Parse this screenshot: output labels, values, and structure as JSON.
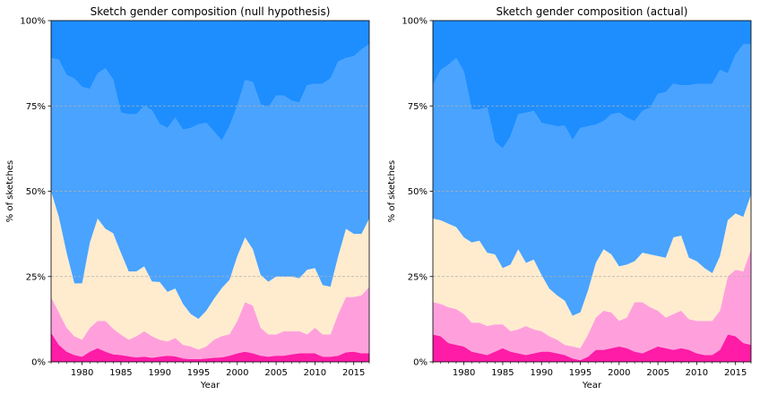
{
  "chart_data": [
    {
      "type": "area",
      "stacked": true,
      "normalized": true,
      "title": "Sketch gender composition (null hypothesis)",
      "xlabel": "Year",
      "ylabel": "% of sketches",
      "xlim": [
        1976,
        2017
      ],
      "ylim": [
        0,
        100
      ],
      "xticks": [
        "1980",
        "1985",
        "1990",
        "1995",
        "2000",
        "2005",
        "2010",
        "2015"
      ],
      "yticks": [
        "0%",
        "25%",
        "50%",
        "75%",
        "100%"
      ],
      "grid": "horizontal dashed at 25% steps",
      "x": [
        1976,
        1977,
        1978,
        1979,
        1980,
        1981,
        1982,
        1983,
        1984,
        1985,
        1986,
        1987,
        1988,
        1989,
        1990,
        1991,
        1992,
        1993,
        1994,
        1995,
        1996,
        1997,
        1998,
        1999,
        2000,
        2001,
        2002,
        2003,
        2004,
        2005,
        2006,
        2007,
        2008,
        2009,
        2010,
        2011,
        2012,
        2013,
        2014,
        2015,
        2016,
        2017
      ],
      "series": [
        {
          "color": "#ff1ca6",
          "values": [
            8.5,
            5,
            3,
            2,
            1.5,
            3,
            4,
            3,
            2.2,
            2,
            1.6,
            1.3,
            1.5,
            1.2,
            1.5,
            1.8,
            1.6,
            1,
            0.8,
            0.8,
            1,
            1.2,
            1.3,
            1.8,
            2.5,
            3,
            2.5,
            1.8,
            1.5,
            1.8,
            1.8,
            2.2,
            2.5,
            2.5,
            2.5,
            1.5,
            1.5,
            1.8,
            2.8,
            3,
            2.5,
            2.5
          ]
        },
        {
          "color": "#ffa0dc",
          "values": [
            10.5,
            9.5,
            7,
            5.5,
            5,
            7,
            8,
            9,
            7.5,
            6,
            4.9,
            6.2,
            7.5,
            6.3,
            5,
            4.2,
            5.4,
            4,
            3.7,
            2.8,
            3.5,
            5.3,
            6.2,
            6.3,
            9.5,
            14.5,
            14,
            8.2,
            6.5,
            6.2,
            7.2,
            6.8,
            6.5,
            5.5,
            7.5,
            6.5,
            6.5,
            12.2,
            16.2,
            16,
            17,
            19.5
          ]
        },
        {
          "color": "#ffeccf",
          "values": [
            31,
            28,
            22,
            15.5,
            16.5,
            25,
            30,
            27,
            28,
            24,
            20,
            19,
            19,
            16,
            17,
            14.5,
            14.5,
            12,
            9.5,
            9,
            10.5,
            12,
            14,
            16,
            19,
            19,
            16.5,
            15.5,
            15.5,
            17,
            16,
            16,
            15.5,
            19,
            17.5,
            14.5,
            14,
            17,
            20,
            18.5,
            18,
            20
          ]
        },
        {
          "color": "#49a3ff",
          "values": [
            39,
            46,
            52,
            60,
            57.5,
            45,
            42.5,
            47,
            45,
            41,
            46,
            46,
            47,
            50,
            46.5,
            48,
            50,
            51,
            54.5,
            57,
            55,
            49,
            43,
            45,
            44,
            46,
            49,
            50,
            51,
            53,
            53,
            51.5,
            51.5,
            54,
            54,
            59,
            61,
            57,
            50,
            52,
            54,
            51
          ]
        },
        {
          "color": "#1e8eff",
          "values": [
            11,
            11.5,
            16,
            17,
            19.5,
            20,
            15.5,
            14,
            17.3,
            27,
            27.5,
            27.5,
            25,
            26.2,
            30.5,
            31.5,
            28.5,
            32,
            31.5,
            30.4,
            30,
            32.5,
            35,
            31,
            25,
            17.5,
            18,
            24.5,
            25.5,
            22,
            22,
            23.5,
            24,
            19,
            18.5,
            18.5,
            17,
            12,
            11,
            10.5,
            8.5,
            7
          ]
        }
      ]
    },
    {
      "type": "area",
      "stacked": true,
      "normalized": true,
      "title": "Sketch gender composition (actual)",
      "xlabel": "Year",
      "ylabel": "% of sketches",
      "xlim": [
        1976,
        2017
      ],
      "ylim": [
        0,
        100
      ],
      "xticks": [
        "1980",
        "1985",
        "1990",
        "1995",
        "2000",
        "2005",
        "2010",
        "2015"
      ],
      "yticks": [
        "0%",
        "25%",
        "50%",
        "75%",
        "100%"
      ],
      "grid": "horizontal dashed at 25% steps",
      "x": [
        1976,
        1977,
        1978,
        1979,
        1980,
        1981,
        1982,
        1983,
        1984,
        1985,
        1986,
        1987,
        1988,
        1989,
        1990,
        1991,
        1992,
        1993,
        1994,
        1995,
        1996,
        1997,
        1998,
        1999,
        2000,
        2001,
        2002,
        2003,
        2004,
        2005,
        2006,
        2007,
        2008,
        2009,
        2010,
        2011,
        2012,
        2013,
        2014,
        2015,
        2016,
        2017
      ],
      "series": [
        {
          "color": "#ff1ca6",
          "values": [
            8,
            7.5,
            5.5,
            5,
            4.5,
            3,
            2.5,
            2,
            3,
            4,
            3,
            2.5,
            2,
            2.5,
            3,
            3,
            2.5,
            2,
            1,
            0.5,
            1.5,
            3.5,
            3.5,
            4,
            4.5,
            4,
            3,
            2.5,
            3.5,
            4.5,
            4,
            3.5,
            4,
            3.5,
            2.5,
            2,
            2,
            3.5,
            8,
            7.5,
            5.5,
            5
          ]
        },
        {
          "color": "#ffa0dc",
          "values": [
            9.5,
            9.5,
            10.5,
            10.5,
            9.5,
            8.5,
            9,
            8.5,
            8,
            7,
            6,
            7,
            8.5,
            7,
            6,
            4.5,
            4,
            3,
            3.5,
            3.5,
            6.5,
            9.5,
            11.5,
            10.5,
            7.5,
            9,
            14.5,
            15,
            12.5,
            10.5,
            9,
            10.5,
            11,
            9,
            9.5,
            10,
            10,
            11.5,
            17,
            19.5,
            21,
            28
          ]
        },
        {
          "color": "#ffeccf",
          "values": [
            24.5,
            24.5,
            24.5,
            24,
            22.5,
            23.5,
            24,
            21.5,
            20.5,
            16.5,
            19.5,
            23.5,
            18.5,
            20.5,
            16.5,
            14,
            13,
            13,
            9,
            10.5,
            13,
            16,
            18,
            17,
            16,
            15.5,
            12,
            14.5,
            15.5,
            16,
            17.5,
            22.5,
            22,
            18,
            17.5,
            15.5,
            14,
            16,
            16.5,
            16.5,
            16,
            16
          ]
        },
        {
          "color": "#49a3ff",
          "values": [
            39,
            44,
            46.5,
            49.5,
            48.5,
            39,
            38.5,
            42.5,
            33,
            35,
            37.5,
            39.5,
            44,
            43.5,
            44.5,
            48,
            49.5,
            51.5,
            51.5,
            54,
            48,
            40.5,
            37.5,
            41,
            45,
            43,
            41,
            41.5,
            43,
            47.5,
            48.5,
            45,
            44,
            50.5,
            52,
            54,
            55.5,
            54.5,
            43,
            46.5,
            50.5,
            44
          ]
        },
        {
          "color": "#1e8eff",
          "values": [
            19,
            14.5,
            13,
            11,
            15,
            26,
            26,
            25.5,
            35.5,
            37.5,
            34,
            27.5,
            27,
            26.5,
            30,
            30.5,
            31,
            31,
            35,
            31.5,
            31,
            30.5,
            29.5,
            27.5,
            27,
            28.5,
            29.5,
            26.5,
            25.5,
            21.5,
            21,
            18.5,
            19,
            19,
            18.5,
            18.5,
            18.5,
            14.5,
            15.5,
            10,
            7,
            7
          ]
        }
      ]
    }
  ]
}
